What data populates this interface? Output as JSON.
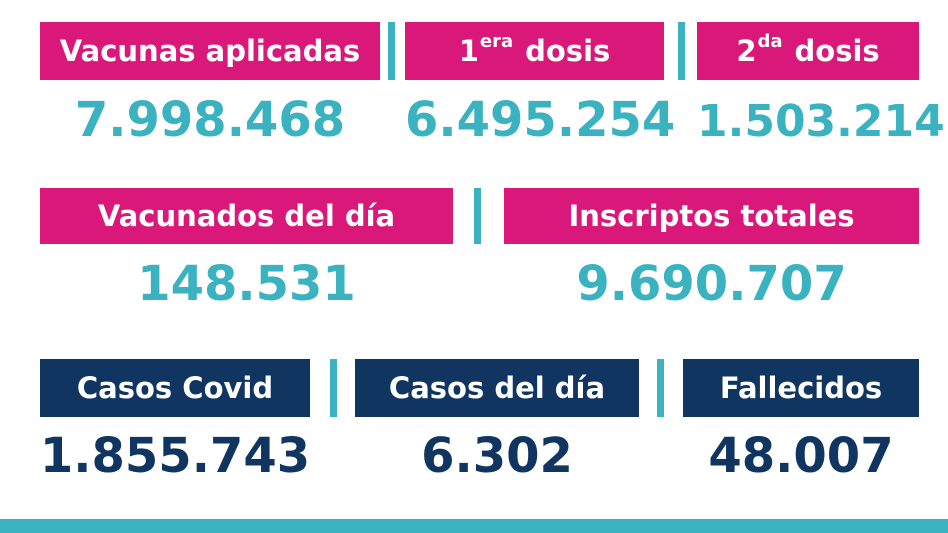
{
  "row1": {
    "vacunas_label": "Vacunas aplicadas",
    "vacunas_value": "7.998.468",
    "dosis1_num": "1",
    "dosis1_sup": "era",
    "dosis1_word": "dosis",
    "dosis1_value": "6.495.254",
    "dosis2_num": "2",
    "dosis2_sup": "da",
    "dosis2_word": "dosis",
    "dosis2_value": "1.503.214"
  },
  "row2": {
    "vacunados_label": "Vacunados del día",
    "vacunados_value": "148.531",
    "inscriptos_label": "Inscriptos totales",
    "inscriptos_value": "9.690.707"
  },
  "row3": {
    "casos_label": "Casos Covid",
    "casos_value": "1.855.743",
    "casos_dia_label": "Casos del día",
    "casos_dia_value": "6.302",
    "fallecidos_label": "Fallecidos",
    "fallecidos_value": "48.007"
  },
  "colors": {
    "pink": "#d9187a",
    "navy": "#0f3560",
    "teal": "#3ab2c0"
  }
}
